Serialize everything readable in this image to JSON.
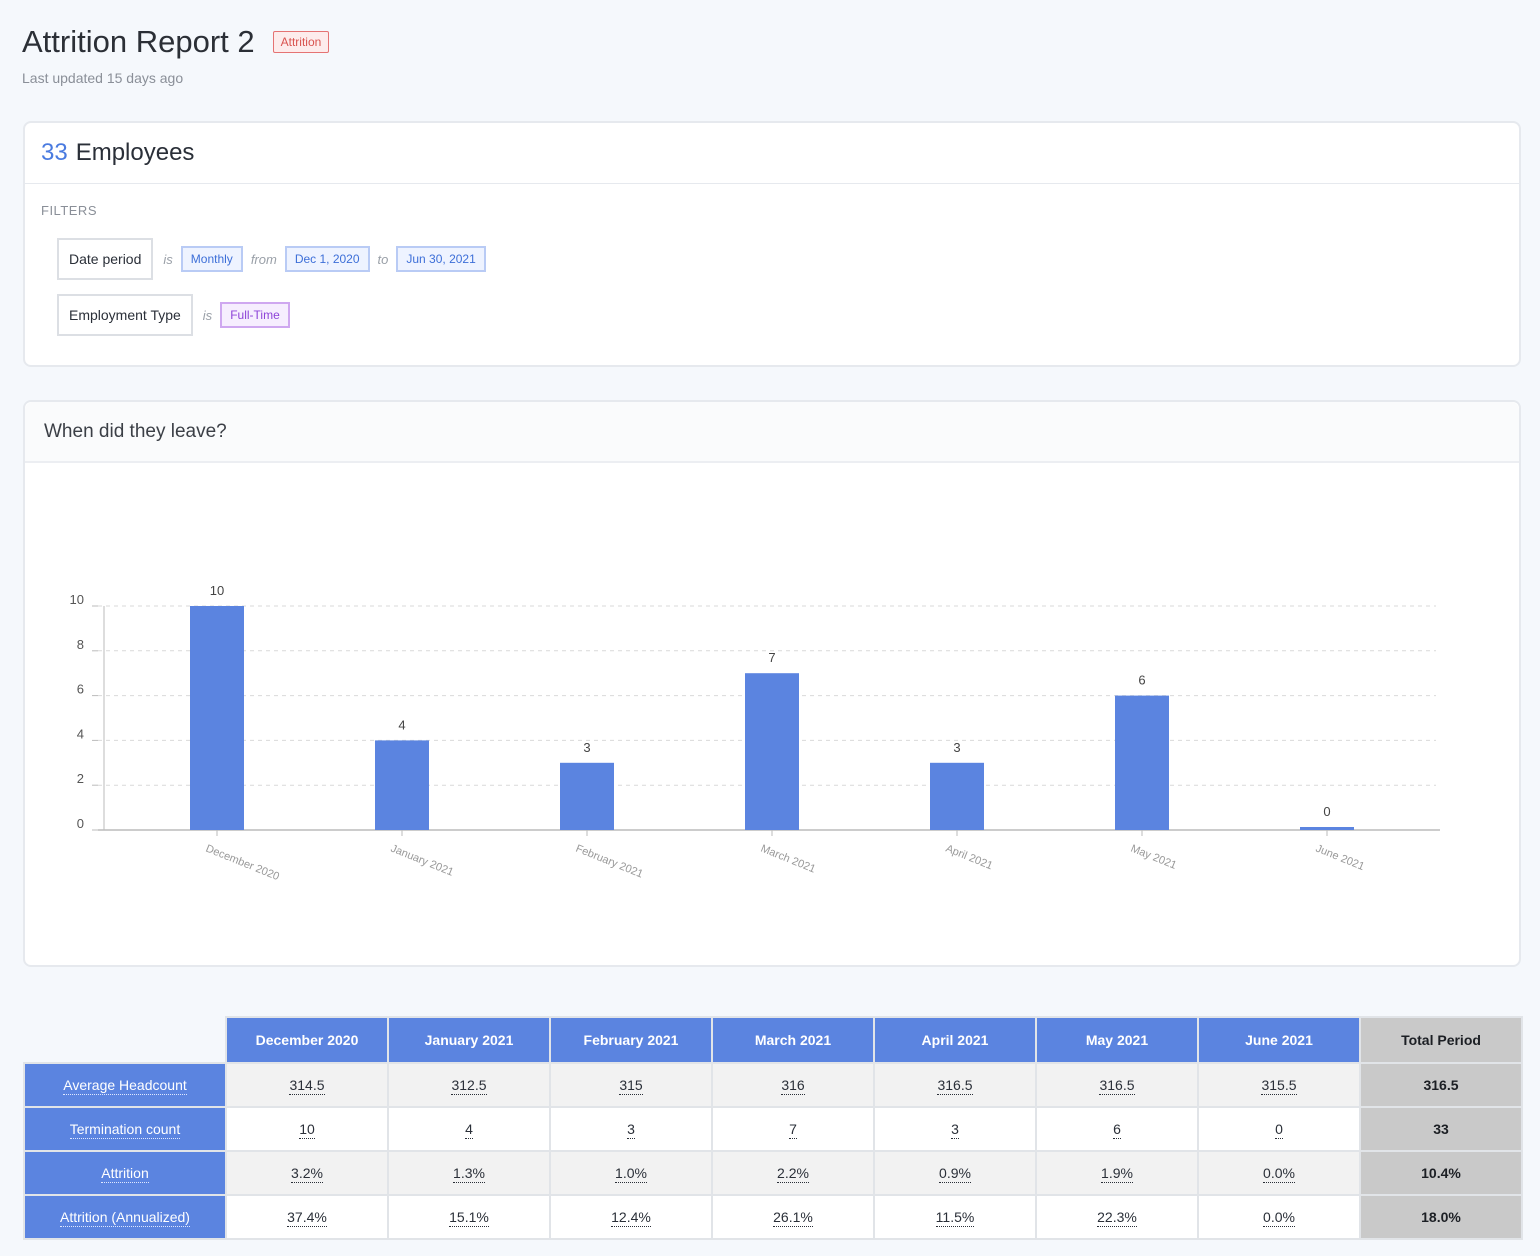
{
  "header": {
    "title": "Attrition Report 2",
    "tag": "Attrition",
    "last_updated": "Last updated 15 days ago"
  },
  "employees": {
    "count": "33",
    "label": "Employees",
    "filters_label": "FILTERS",
    "filters": [
      {
        "field": "Date period",
        "op1": "is",
        "value1": "Monthly",
        "op2": "from",
        "value2": "Dec 1, 2020",
        "op3": "to",
        "value3": "Jun 30, 2021"
      },
      {
        "field": "Employment Type",
        "op1": "is",
        "value1": "Full-Time"
      }
    ]
  },
  "chart_section": {
    "title": "When did they leave?"
  },
  "chart_data": {
    "type": "bar",
    "categories": [
      "December 2020",
      "January 2021",
      "February 2021",
      "March 2021",
      "April 2021",
      "May 2021",
      "June 2021"
    ],
    "values": [
      10,
      4,
      3,
      7,
      3,
      6,
      0
    ],
    "ylim": [
      0,
      10
    ],
    "yticks": [
      0,
      2,
      4,
      6,
      8,
      10
    ],
    "grid": true,
    "bar_color": "#5b84e0",
    "xlabel": "",
    "ylabel": ""
  },
  "table": {
    "columns": [
      "December 2020",
      "January 2021",
      "February 2021",
      "March 2021",
      "April 2021",
      "May 2021",
      "June 2021",
      "Total Period"
    ],
    "rows": [
      {
        "label": "Average Headcount",
        "values": [
          "314.5",
          "312.5",
          "315",
          "316",
          "316.5",
          "316.5",
          "315.5"
        ],
        "total": "316.5"
      },
      {
        "label": "Termination count",
        "values": [
          "10",
          "4",
          "3",
          "7",
          "3",
          "6",
          "0"
        ],
        "total": "33"
      },
      {
        "label": "Attrition",
        "values": [
          "3.2%",
          "1.3%",
          "1.0%",
          "2.2%",
          "0.9%",
          "1.9%",
          "0.0%"
        ],
        "total": "10.4%"
      },
      {
        "label": "Attrition (Annualized)",
        "values": [
          "37.4%",
          "15.1%",
          "12.4%",
          "26.1%",
          "11.5%",
          "22.3%",
          "0.0%"
        ],
        "total": "18.0%"
      }
    ]
  },
  "colors": {
    "accent": "#5b84e0",
    "tag_red": "#d9534f",
    "chip_blue": "#3d6fd8",
    "chip_purple": "#8e44d8"
  }
}
